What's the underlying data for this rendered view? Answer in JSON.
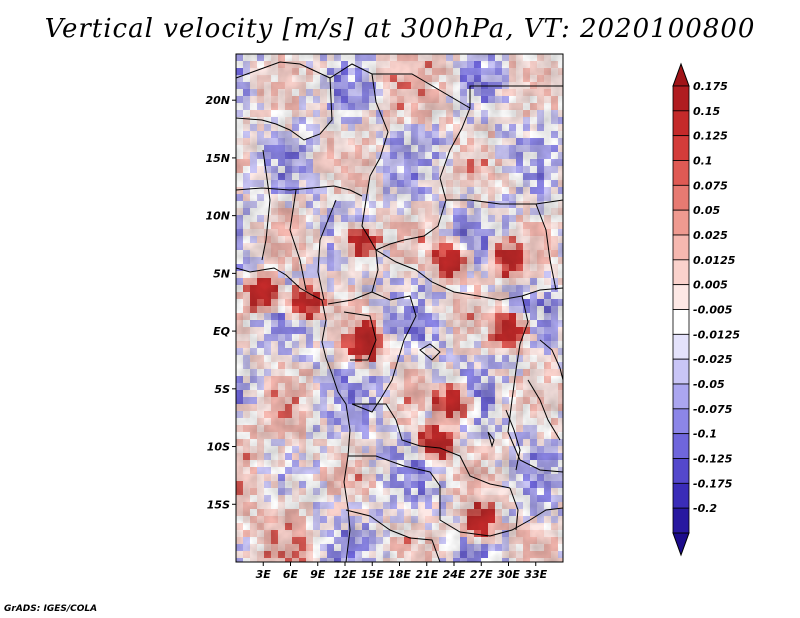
{
  "title": "Vertical velocity [m/s] at 300hPa, VT: 2020100800",
  "credit": "GrADS: IGES/COLA",
  "map": {
    "variable": "Vertical velocity",
    "units": "m/s",
    "level": "300hPa",
    "valid_time": "2020100800",
    "lon_range": [
      0,
      36
    ],
    "lat_range": [
      -20,
      24
    ],
    "lat_ticks": [
      {
        "value": 20,
        "label": "20N"
      },
      {
        "value": 15,
        "label": "15N"
      },
      {
        "value": 10,
        "label": "10N"
      },
      {
        "value": 5,
        "label": "5N"
      },
      {
        "value": 0,
        "label": "EQ"
      },
      {
        "value": -5,
        "label": "5S"
      },
      {
        "value": -10,
        "label": "10S"
      },
      {
        "value": -15,
        "label": "15S"
      }
    ],
    "lon_ticks": [
      {
        "value": 3,
        "label": "3E"
      },
      {
        "value": 6,
        "label": "6E"
      },
      {
        "value": 9,
        "label": "9E"
      },
      {
        "value": 12,
        "label": "12E"
      },
      {
        "value": 15,
        "label": "15E"
      },
      {
        "value": 18,
        "label": "18E"
      },
      {
        "value": 21,
        "label": "21E"
      },
      {
        "value": 24,
        "label": "24E"
      },
      {
        "value": 27,
        "label": "27E"
      },
      {
        "value": 30,
        "label": "30E"
      },
      {
        "value": 33,
        "label": "33E"
      }
    ],
    "colorbar": [
      {
        "label": "0.175",
        "color": "#b01c20"
      },
      {
        "label": "0.15",
        "color": "#c42a2a"
      },
      {
        "label": "0.125",
        "color": "#d33c3a"
      },
      {
        "label": "0.1",
        "color": "#df5a54"
      },
      {
        "label": "0.075",
        "color": "#e77a72"
      },
      {
        "label": "0.05",
        "color": "#ef9a90"
      },
      {
        "label": "0.025",
        "color": "#f6b8b0"
      },
      {
        "label": "0.0125",
        "color": "#fad2cc"
      },
      {
        "label": "0.005",
        "color": "#fde8e5"
      },
      {
        "label": "-0.005",
        "color": "#ffffff"
      },
      {
        "label": "-0.0125",
        "color": "#e4e2fb"
      },
      {
        "label": "-0.025",
        "color": "#c9c5f6"
      },
      {
        "label": "-0.05",
        "color": "#aba6f0"
      },
      {
        "label": "-0.075",
        "color": "#8c86e8"
      },
      {
        "label": "-0.1",
        "color": "#6f66dc"
      },
      {
        "label": "-0.125",
        "color": "#5448cc"
      },
      {
        "label": "-0.175",
        "color": "#3a2cb8"
      },
      {
        "label": "-0.2",
        "color": "#2818a0"
      }
    ],
    "colorbar_top_color": "#a01418",
    "colorbar_bottom_color": "#1c0c8c"
  }
}
